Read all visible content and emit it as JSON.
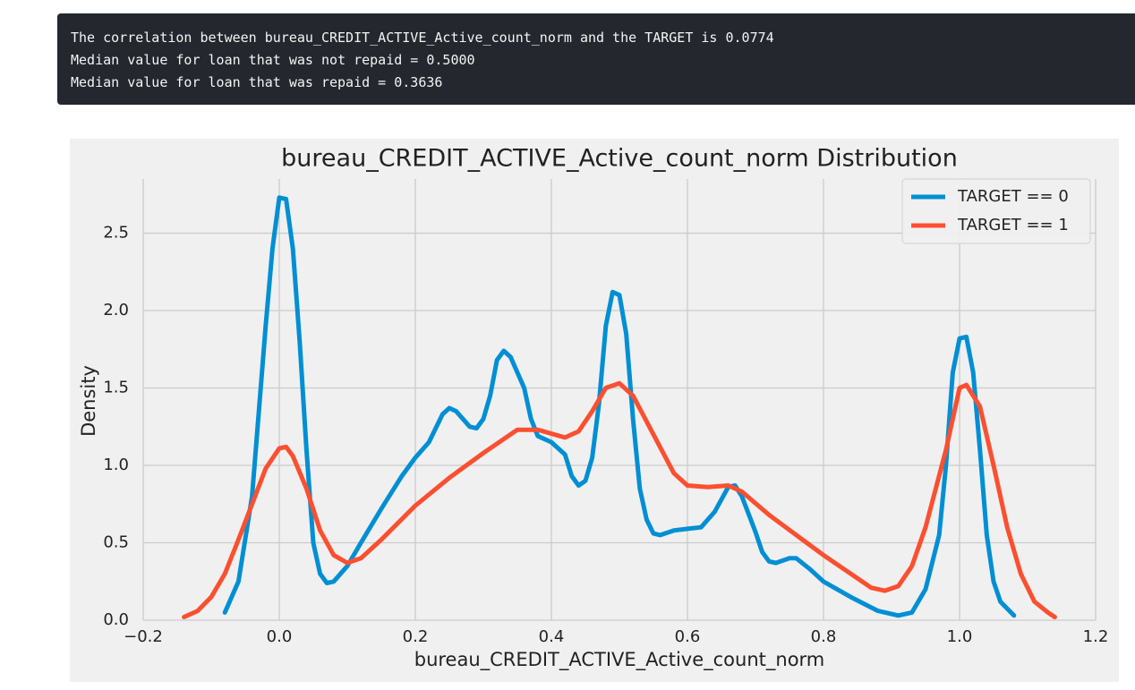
{
  "output": {
    "lines": [
      "The correlation between bureau_CREDIT_ACTIVE_Active_count_norm and the TARGET is 0.0774",
      "Median value for loan that was not repaid = 0.5000",
      "Median value for loan that was repaid = 0.3636"
    ]
  },
  "chart_data": {
    "type": "line",
    "title": "bureau_CREDIT_ACTIVE_Active_count_norm Distribution",
    "x_label": "bureau_CREDIT_ACTIVE_Active_count_norm",
    "y_label": "Density",
    "xlim": [
      -0.2,
      1.2
    ],
    "ylim": [
      0,
      2.85
    ],
    "xticks": [
      {
        "value": -0.2,
        "label": "−0.2"
      },
      {
        "value": 0,
        "label": "0.0"
      },
      0.2,
      0.4,
      0.6,
      0.8,
      {
        "value": 1,
        "label": "1.0"
      },
      1.2
    ],
    "yticks": [
      {
        "value": 0,
        "label": "0.0"
      },
      0.5,
      {
        "value": 1,
        "label": "1.0"
      },
      1.5,
      {
        "value": 2,
        "label": "2.0"
      },
      2.5
    ],
    "grid": true,
    "legend": "upper right",
    "series": [
      {
        "name": "TARGET == 0",
        "color": "#008fd5",
        "x": [
          -0.08,
          -0.06,
          -0.04,
          -0.02,
          -0.01,
          0.0,
          0.01,
          0.02,
          0.03,
          0.04,
          0.05,
          0.06,
          0.07,
          0.08,
          0.1,
          0.12,
          0.15,
          0.18,
          0.2,
          0.22,
          0.24,
          0.25,
          0.26,
          0.28,
          0.29,
          0.3,
          0.31,
          0.32,
          0.33,
          0.34,
          0.36,
          0.37,
          0.38,
          0.4,
          0.42,
          0.43,
          0.44,
          0.45,
          0.46,
          0.47,
          0.48,
          0.49,
          0.5,
          0.51,
          0.52,
          0.53,
          0.54,
          0.55,
          0.56,
          0.58,
          0.6,
          0.62,
          0.64,
          0.66,
          0.67,
          0.68,
          0.7,
          0.71,
          0.72,
          0.73,
          0.75,
          0.76,
          0.78,
          0.8,
          0.84,
          0.88,
          0.91,
          0.93,
          0.95,
          0.97,
          0.98,
          0.99,
          1.0,
          1.01,
          1.02,
          1.03,
          1.04,
          1.05,
          1.06,
          1.08
        ],
        "values": [
          0.05,
          0.25,
          0.8,
          1.9,
          2.4,
          2.73,
          2.72,
          2.4,
          1.8,
          1.1,
          0.5,
          0.3,
          0.24,
          0.25,
          0.35,
          0.5,
          0.72,
          0.93,
          1.05,
          1.15,
          1.33,
          1.37,
          1.35,
          1.25,
          1.24,
          1.3,
          1.45,
          1.68,
          1.74,
          1.7,
          1.5,
          1.3,
          1.19,
          1.15,
          1.07,
          0.93,
          0.87,
          0.9,
          1.05,
          1.4,
          1.9,
          2.12,
          2.1,
          1.85,
          1.3,
          0.85,
          0.65,
          0.56,
          0.55,
          0.58,
          0.59,
          0.6,
          0.7,
          0.86,
          0.87,
          0.8,
          0.57,
          0.44,
          0.38,
          0.37,
          0.4,
          0.4,
          0.33,
          0.25,
          0.15,
          0.06,
          0.03,
          0.05,
          0.2,
          0.55,
          1.0,
          1.6,
          1.82,
          1.83,
          1.6,
          1.1,
          0.55,
          0.25,
          0.12,
          0.03
        ]
      },
      {
        "name": "TARGET == 1",
        "color": "#fc4f30",
        "x": [
          -0.14,
          -0.12,
          -0.1,
          -0.08,
          -0.06,
          -0.04,
          -0.02,
          0.0,
          0.01,
          0.02,
          0.04,
          0.06,
          0.08,
          0.1,
          0.12,
          0.15,
          0.2,
          0.25,
          0.3,
          0.35,
          0.38,
          0.42,
          0.44,
          0.46,
          0.48,
          0.5,
          0.52,
          0.55,
          0.58,
          0.6,
          0.63,
          0.66,
          0.68,
          0.72,
          0.76,
          0.8,
          0.84,
          0.87,
          0.89,
          0.91,
          0.93,
          0.95,
          0.98,
          1.0,
          1.01,
          1.03,
          1.05,
          1.07,
          1.09,
          1.11,
          1.13,
          1.14
        ],
        "values": [
          0.02,
          0.06,
          0.15,
          0.3,
          0.52,
          0.75,
          0.98,
          1.11,
          1.12,
          1.06,
          0.85,
          0.58,
          0.42,
          0.37,
          0.4,
          0.52,
          0.74,
          0.92,
          1.08,
          1.23,
          1.23,
          1.18,
          1.22,
          1.35,
          1.5,
          1.53,
          1.45,
          1.2,
          0.95,
          0.87,
          0.86,
          0.87,
          0.83,
          0.68,
          0.55,
          0.42,
          0.3,
          0.21,
          0.19,
          0.22,
          0.35,
          0.6,
          1.1,
          1.5,
          1.52,
          1.38,
          1.0,
          0.6,
          0.3,
          0.12,
          0.05,
          0.02
        ]
      }
    ]
  }
}
